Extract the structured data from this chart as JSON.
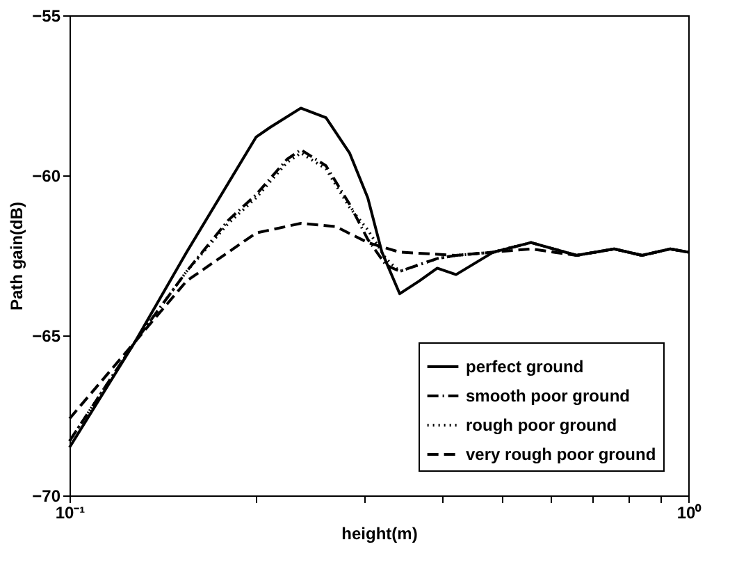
{
  "chart_data": {
    "type": "line",
    "xlabel": "height(m)",
    "ylabel": "Path gain(dB)",
    "log": "x",
    "xlim": [
      0.1,
      1
    ],
    "ylim": [
      -70,
      -55
    ],
    "xticks": [
      {
        "value": 0.1,
        "label": "10⁻¹"
      },
      {
        "value": 0.2,
        "label": null
      },
      {
        "value": 0.3,
        "label": null
      },
      {
        "value": 0.4,
        "label": null
      },
      {
        "value": 0.5,
        "label": null
      },
      {
        "value": 0.6,
        "label": null
      },
      {
        "value": 0.7,
        "label": null
      },
      {
        "value": 0.8,
        "label": null
      },
      {
        "value": 0.9,
        "label": null
      },
      {
        "value": 1,
        "label": "10⁰"
      }
    ],
    "yticks": [
      -70,
      -65,
      -60,
      -55
    ],
    "grid": false,
    "legend": "bottom right",
    "marker": "none",
    "series": [
      {
        "name": "perfect ground",
        "color": "#000000",
        "line_style": "solid",
        "x": [
          0.1,
          0.1276,
          0.1546,
          0.2003,
          0.211,
          0.2365,
          0.2597,
          0.2835,
          0.3034,
          0.3198,
          0.3417,
          0.3674,
          0.3929,
          0.4214,
          0.484,
          0.557,
          0.66,
          0.759,
          0.842,
          0.935,
          1.0
        ],
        "values": [
          -68.5,
          -65.2,
          -62.4,
          -58.8,
          -58.5,
          -57.9,
          -58.2,
          -59.3,
          -60.7,
          -62.4,
          -63.7,
          -63.3,
          -62.9,
          -63.1,
          -62.4,
          -62.1,
          -62.5,
          -62.3,
          -62.5,
          -62.3,
          -62.4
        ]
      },
      {
        "name": "smooth poor ground",
        "color": "#000000",
        "line_style": "dashdot",
        "x": [
          0.1,
          0.1276,
          0.1546,
          0.1806,
          0.2003,
          0.2246,
          0.2365,
          0.2597,
          0.2835,
          0.3034,
          0.3245,
          0.3417,
          0.3929,
          0.4214,
          0.484,
          0.557,
          0.66,
          0.759,
          0.842,
          0.935,
          1.0
        ],
        "values": [
          -68.3,
          -65.2,
          -63.0,
          -61.4,
          -60.6,
          -59.5,
          -59.2,
          -59.7,
          -60.9,
          -62.0,
          -62.8,
          -63.0,
          -62.6,
          -62.5,
          -62.4,
          -62.1,
          -62.5,
          -62.3,
          -62.5,
          -62.3,
          -62.4
        ]
      },
      {
        "name": "rough poor ground",
        "color": "#000000",
        "line_style": "dotted",
        "x": [
          0.1,
          0.1276,
          0.1546,
          0.1806,
          0.2003,
          0.2246,
          0.2365,
          0.2597,
          0.2835,
          0.3034,
          0.3245,
          0.3417,
          0.3929,
          0.4214,
          0.484,
          0.557,
          0.66,
          0.759,
          0.842,
          0.935,
          1.0
        ],
        "values": [
          -68.3,
          -65.2,
          -63.0,
          -61.5,
          -60.7,
          -59.6,
          -59.3,
          -59.8,
          -61.0,
          -61.7,
          -62.6,
          -63.0,
          -62.6,
          -62.5,
          -62.4,
          -62.1,
          -62.5,
          -62.3,
          -62.5,
          -62.3,
          -62.4
        ]
      },
      {
        "name": "very rough poor ground",
        "color": "#000000",
        "line_style": "dashed",
        "x": [
          0.1,
          0.1276,
          0.1546,
          0.2003,
          0.2365,
          0.2693,
          0.3034,
          0.3417,
          0.4214,
          0.484,
          0.557,
          0.66,
          0.759,
          0.842,
          0.935,
          1.0
        ],
        "values": [
          -67.6,
          -65.2,
          -63.3,
          -61.8,
          -61.5,
          -61.6,
          -62.1,
          -62.4,
          -62.5,
          -62.4,
          -62.3,
          -62.5,
          -62.3,
          -62.5,
          -62.3,
          -62.4
        ]
      }
    ]
  }
}
